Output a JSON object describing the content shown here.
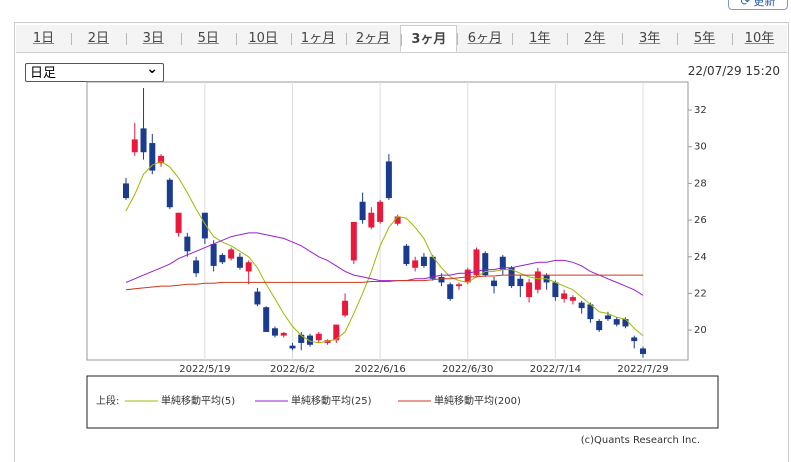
{
  "header": {
    "update_button": "更新",
    "tabs": [
      "1日",
      "2日",
      "3日",
      "5日",
      "10日",
      "1ヶ月",
      "2ヶ月",
      "3ヶ月",
      "6ヶ月",
      "1年",
      "2年",
      "3年",
      "5年",
      "10年"
    ],
    "selected_tab": 7,
    "period_select": "日足",
    "timestamp": "22/07/29 15:20"
  },
  "chart_data": {
    "type": "candlestick",
    "categories": [
      null,
      null,
      null,
      null,
      null,
      null,
      null,
      null,
      null,
      "2022/5/19",
      null,
      null,
      null,
      null,
      null,
      null,
      null,
      null,
      null,
      "2022/6/2",
      null,
      null,
      null,
      null,
      null,
      null,
      null,
      null,
      null,
      "2022/6/16",
      null,
      null,
      null,
      null,
      null,
      null,
      null,
      null,
      null,
      "2022/6/30",
      null,
      null,
      null,
      null,
      null,
      null,
      null,
      null,
      null,
      "2022/7/14",
      null,
      null,
      null,
      null,
      null,
      null,
      null,
      null,
      null,
      "2022/7/29"
    ],
    "up_color": "#e8193c",
    "down_color": "#1b3b8f",
    "open": [
      28.0,
      29.7,
      31.0,
      30.2,
      29.1,
      28.2,
      25.3,
      25.1,
      23.8,
      26.4,
      24.7,
      24.1,
      23.9,
      24.0,
      23.2,
      22.1,
      21.25,
      20.1,
      19.7,
      19.15,
      19.75,
      19.7,
      19.45,
      19.3,
      19.45,
      20.8,
      23.8,
      27.0,
      25.6,
      25.9,
      29.2,
      25.8,
      24.6,
      23.4,
      24.0,
      24.0,
      22.9,
      22.5,
      22.4,
      22.6,
      23.0,
      24.2,
      22.7,
      24.0,
      23.4,
      22.8,
      21.8,
      22.2,
      23.0,
      22.6,
      21.7,
      21.6,
      21.5,
      21.4,
      20.5,
      20.8,
      20.6,
      20.6,
      19.6,
      19.0
    ],
    "high": [
      28.3,
      31.3,
      33.2,
      30.7,
      29.6,
      28.3,
      26.4,
      25.3,
      24.0,
      26.4,
      24.9,
      24.2,
      24.5,
      24.2,
      23.8,
      22.3,
      21.3,
      20.2,
      19.9,
      19.3,
      19.9,
      19.8,
      19.9,
      19.5,
      20.3,
      22.0,
      25.9,
      27.5,
      26.7,
      27.1,
      29.6,
      26.3,
      24.7,
      24.0,
      24.2,
      24.1,
      23.1,
      22.6,
      22.6,
      23.4,
      24.5,
      24.3,
      22.9,
      24.1,
      23.5,
      23.0,
      22.8,
      23.4,
      23.1,
      22.7,
      22.2,
      21.9,
      21.6,
      21.5,
      20.6,
      21.0,
      20.7,
      20.7,
      19.7,
      19.1
    ],
    "low": [
      27.1,
      29.5,
      29.3,
      28.5,
      28.9,
      26.6,
      25.1,
      24.0,
      22.9,
      24.7,
      23.2,
      23.6,
      23.8,
      23.3,
      22.5,
      21.3,
      19.9,
      19.6,
      19.6,
      18.9,
      18.9,
      19.1,
      19.3,
      19.2,
      19.3,
      20.7,
      23.6,
      25.8,
      25.5,
      25.8,
      27.1,
      25.7,
      23.5,
      23.2,
      23.4,
      22.7,
      22.4,
      21.6,
      22.2,
      22.5,
      22.9,
      22.9,
      22.0,
      23.0,
      22.3,
      21.8,
      21.5,
      22.0,
      22.2,
      21.6,
      21.5,
      21.4,
      20.9,
      20.4,
      19.9,
      20.5,
      20.2,
      20.1,
      19.0,
      18.5
    ],
    "close": [
      27.2,
      30.4,
      29.7,
      28.7,
      29.5,
      26.7,
      26.4,
      24.3,
      23.1,
      25.0,
      23.5,
      23.7,
      24.4,
      23.4,
      23.7,
      21.4,
      19.9,
      19.7,
      19.85,
      19.0,
      19.3,
      19.2,
      19.8,
      19.45,
      20.3,
      21.6,
      25.9,
      26.0,
      26.4,
      27.0,
      27.2,
      26.2,
      23.6,
      23.8,
      23.5,
      22.8,
      22.6,
      21.7,
      22.5,
      23.3,
      24.4,
      23.0,
      22.4,
      23.3,
      22.4,
      22.4,
      22.6,
      23.2,
      22.6,
      21.8,
      22.0,
      21.8,
      21.2,
      20.6,
      20.0,
      20.6,
      20.3,
      20.2,
      19.4,
      18.7
    ],
    "legend_label": "上段:",
    "series": [
      {
        "name": "単純移動平均(5)",
        "color": "#9fb800",
        "values": [
          26.5,
          27.4,
          28.5,
          29.0,
          29.2,
          28.9,
          28.3,
          27.5,
          26.6,
          25.8,
          25.1,
          24.8,
          24.6,
          24.3,
          24.0,
          23.4,
          22.5,
          21.7,
          20.9,
          20.2,
          19.7,
          19.4,
          19.3,
          19.4,
          19.5,
          19.9,
          20.9,
          22.0,
          23.2,
          24.6,
          25.6,
          26.2,
          26.1,
          25.6,
          25.0,
          24.0,
          23.4,
          22.9,
          22.7,
          22.6,
          22.9,
          23.2,
          23.2,
          23.3,
          23.3,
          23.1,
          22.9,
          22.8,
          22.8,
          22.6,
          22.4,
          22.2,
          21.8,
          21.4,
          21.0,
          20.9,
          20.7,
          20.6,
          20.1,
          19.7
        ]
      },
      {
        "name": "単純移動平均(25)",
        "color": "#9a1fd0",
        "values": [
          22.6,
          22.8,
          23.0,
          23.2,
          23.4,
          23.6,
          23.9,
          24.1,
          24.3,
          24.5,
          24.7,
          24.9,
          25.1,
          25.2,
          25.3,
          25.3,
          25.2,
          25.1,
          25.0,
          24.8,
          24.6,
          24.3,
          24.0,
          23.8,
          23.5,
          23.2,
          23.0,
          22.9,
          22.8,
          22.7,
          22.7,
          22.7,
          22.7,
          22.8,
          22.8,
          22.9,
          23.0,
          23.0,
          23.1,
          23.1,
          23.2,
          23.3,
          23.3,
          23.4,
          23.4,
          23.5,
          23.6,
          23.7,
          23.7,
          23.8,
          23.8,
          23.7,
          23.5,
          23.2,
          23.0,
          22.8,
          22.6,
          22.4,
          22.2,
          21.9
        ]
      },
      {
        "name": "単純移動平均(200)",
        "color": "#cc3a1a",
        "values": [
          22.2,
          22.25,
          22.3,
          22.35,
          22.4,
          22.4,
          22.45,
          22.5,
          22.5,
          22.55,
          22.55,
          22.6,
          22.6,
          22.6,
          22.6,
          22.6,
          22.6,
          22.6,
          22.6,
          22.6,
          22.6,
          22.6,
          22.6,
          22.6,
          22.6,
          22.6,
          22.6,
          22.6,
          22.65,
          22.65,
          22.65,
          22.7,
          22.7,
          22.7,
          22.7,
          22.75,
          22.8,
          22.8,
          22.85,
          22.9,
          22.9,
          22.95,
          22.95,
          23.0,
          23.0,
          23.0,
          23.0,
          23.0,
          23.0,
          23.0,
          23.0,
          23.0,
          23.0,
          23.0,
          23.0,
          23.0,
          23.0,
          23.0,
          23.0,
          23.0
        ]
      }
    ],
    "ylim": [
      18.37,
      33.53
    ],
    "yticks": [
      20,
      22,
      24,
      26,
      28,
      30,
      32
    ],
    "grid": true
  },
  "footer": {
    "copyright": "(c)Quants Research Inc."
  }
}
